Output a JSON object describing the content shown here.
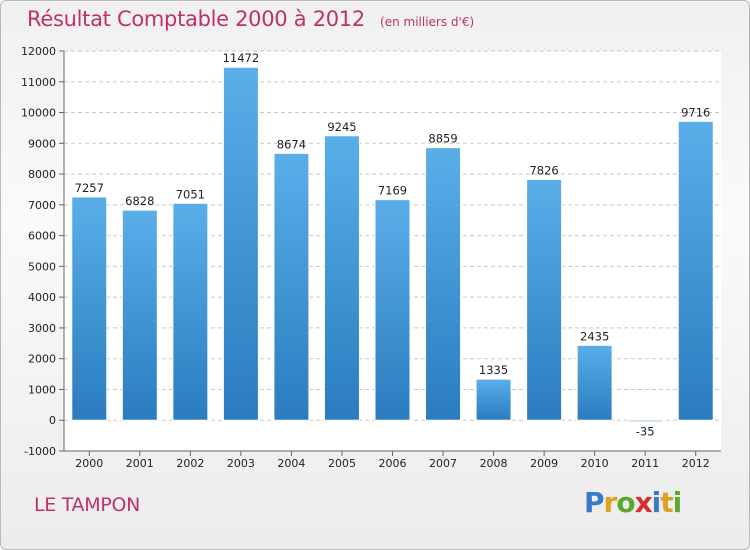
{
  "chart_data": {
    "type": "bar",
    "title": "Résultat Comptable 2000 à 2012",
    "subtitle": "(en milliers d'€)",
    "categories": [
      "2000",
      "2001",
      "2002",
      "2003",
      "2004",
      "2005",
      "2006",
      "2007",
      "2008",
      "2009",
      "2010",
      "2011",
      "2012"
    ],
    "values": [
      7257,
      6828,
      7051,
      11472,
      8674,
      9245,
      7169,
      8859,
      1335,
      7826,
      2435,
      -35,
      9716
    ],
    "ylim": [
      -1000,
      12000
    ],
    "yticks": [
      -1000,
      0,
      1000,
      2000,
      3000,
      4000,
      5000,
      6000,
      7000,
      8000,
      9000,
      10000,
      11000,
      12000
    ],
    "xlabel": "",
    "ylabel": "",
    "grid": true,
    "bar_color_light": "#5aaee8",
    "bar_color_dark": "#2a7cbf"
  },
  "location": "LE TAMPON",
  "logo": {
    "letters": [
      "P",
      "r",
      "o",
      "x",
      "i",
      "t",
      "i"
    ],
    "colors": [
      "#3a78c8",
      "#e0a020",
      "#5aa830",
      "#d83030",
      "#3a78c8",
      "#e0a020",
      "#5aa830"
    ]
  },
  "colors": {
    "accent": "#c0306a"
  }
}
